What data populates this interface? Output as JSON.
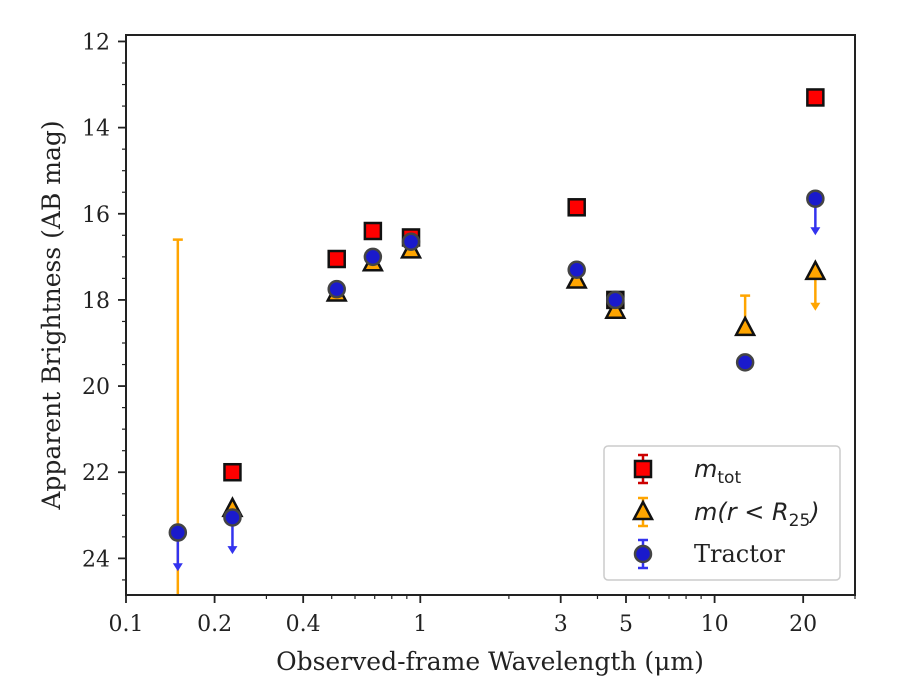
{
  "chart_data": {
    "type": "scatter",
    "xlabel": "Observed-frame Wavelength (μm)",
    "ylabel": "Apparent Brightness (AB mag)",
    "xscale": "log",
    "xlim": [
      0.1,
      30
    ],
    "ylim": [
      24.85,
      11.85
    ],
    "y_inverted": true,
    "x_ticks": [
      0.1,
      0.2,
      0.4,
      1,
      3,
      5,
      10,
      20
    ],
    "x_tick_labels": [
      "0.1",
      "0.2",
      "0.4",
      "1",
      "3",
      "5",
      "10",
      "20"
    ],
    "y_ticks": [
      12,
      14,
      16,
      18,
      20,
      22,
      24
    ],
    "y_tick_labels": [
      "12",
      "14",
      "16",
      "18",
      "20",
      "22",
      "24"
    ],
    "legend_position": "lower-right",
    "series": [
      {
        "name": "m_tot",
        "legend_label": {
          "main": "m",
          "sub": "tot"
        },
        "marker": "square",
        "color": "#ff0000",
        "points": [
          {
            "x": 0.23,
            "y": 22.0
          },
          {
            "x": 0.52,
            "y": 17.05
          },
          {
            "x": 0.69,
            "y": 16.4
          },
          {
            "x": 0.93,
            "y": 16.55
          },
          {
            "x": 3.4,
            "y": 15.85
          },
          {
            "x": 4.6,
            "y": 18.0
          },
          {
            "x": 22,
            "y": 13.3
          }
        ]
      },
      {
        "name": "m(r<R25)",
        "legend_label": {
          "main": "m(r < R",
          "sub": "25",
          "tail": ")"
        },
        "marker": "triangle",
        "color": "#ffa500",
        "points": [
          {
            "x": 0.15,
            "y": 16.6,
            "lower_only": true,
            "err_lo_to": 24.85
          },
          {
            "x": 0.23,
            "y": 22.85
          },
          {
            "x": 0.52,
            "y": 17.85
          },
          {
            "x": 0.69,
            "y": 17.15
          },
          {
            "x": 0.93,
            "y": 16.85
          },
          {
            "x": 3.4,
            "y": 17.55
          },
          {
            "x": 4.6,
            "y": 18.25
          },
          {
            "x": 12.7,
            "y": 18.65,
            "err_lo_to": 17.9
          },
          {
            "x": 22,
            "y": 17.35,
            "upper_limit_to": 18.25
          }
        ]
      },
      {
        "name": "Tractor",
        "legend_label": {
          "main": "Tractor"
        },
        "marker": "circle",
        "color": "#0000ff",
        "points": [
          {
            "x": 0.15,
            "y": 23.4,
            "upper_limit_to": 24.3
          },
          {
            "x": 0.23,
            "y": 23.05,
            "upper_limit_to": 23.9
          },
          {
            "x": 0.52,
            "y": 17.75
          },
          {
            "x": 0.69,
            "y": 17.0
          },
          {
            "x": 0.93,
            "y": 16.65
          },
          {
            "x": 3.4,
            "y": 17.3
          },
          {
            "x": 4.6,
            "y": 18.0
          },
          {
            "x": 12.7,
            "y": 19.45
          },
          {
            "x": 22,
            "y": 15.65,
            "upper_limit_to": 16.5
          }
        ]
      }
    ]
  }
}
